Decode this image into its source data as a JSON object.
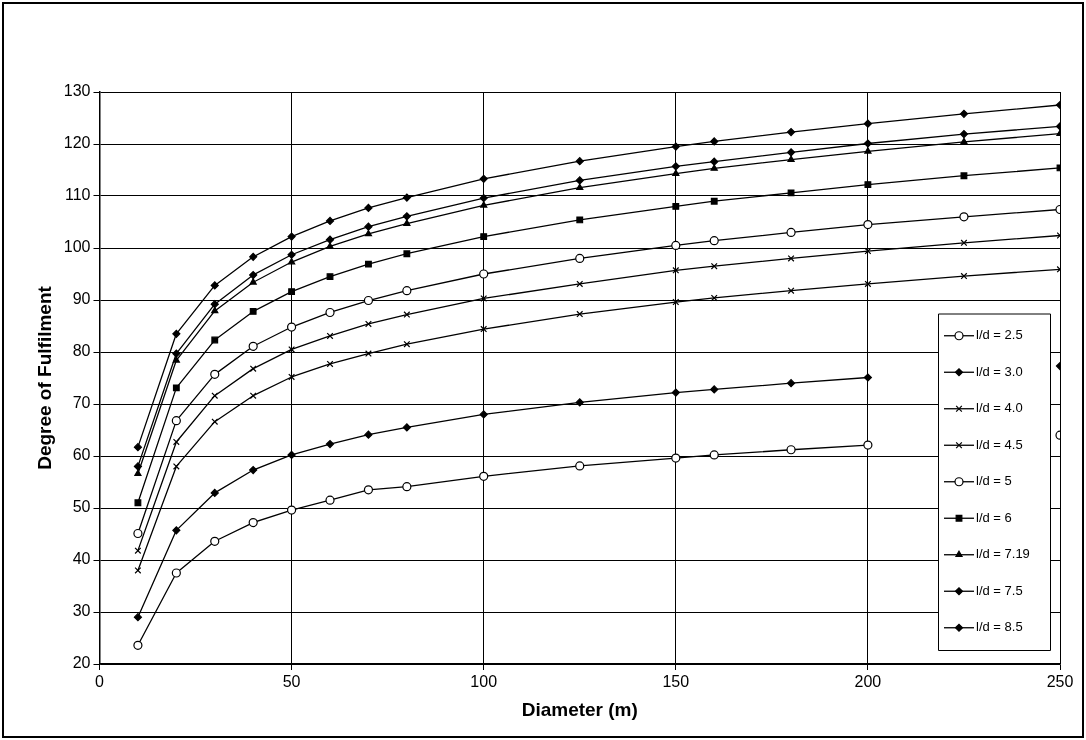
{
  "chart_data": {
    "type": "line",
    "xlabel": "Diameter (m)",
    "ylabel": "Degree of Fulfilment",
    "x": [
      10,
      20,
      30,
      40,
      50,
      60,
      70,
      80,
      100,
      125,
      150,
      160,
      180,
      200,
      225,
      250
    ],
    "xlim": [
      0,
      250
    ],
    "xticks": [
      0,
      50,
      100,
      150,
      200,
      250
    ],
    "ylim": [
      20,
      130
    ],
    "yticks": [
      20,
      30,
      40,
      50,
      60,
      70,
      80,
      90,
      100,
      110,
      120,
      130
    ],
    "grid": true,
    "legend": "bottom right",
    "line_style": "solid",
    "series": [
      {
        "name": "l/d = 2.5",
        "color": "#000000",
        "marker": "circle",
        "values": [
          23.6,
          37.5,
          43.6,
          47.2,
          49.6,
          51.5,
          53.5,
          54.1,
          56.1,
          58.1,
          59.6,
          60.2,
          61.2,
          62.1,
          null,
          64.0
        ]
      },
      {
        "name": "l/d = 3.0",
        "color": "#000000",
        "marker": "diamond",
        "values": [
          29,
          45.7,
          52.9,
          57.3,
          60.2,
          62.3,
          64.1,
          65.5,
          68,
          70.3,
          72.2,
          72.8,
          74,
          75.1,
          null,
          77.3
        ]
      },
      {
        "name": "l/d = 4.0",
        "color": "#000000",
        "marker": "cross",
        "values": [
          38,
          58,
          66.6,
          71.6,
          75.2,
          77.7,
          79.7,
          81.5,
          84.4,
          87.3,
          89.6,
          90.4,
          91.8,
          93.1,
          94.6,
          95.9
        ]
      },
      {
        "name": "l/d = 4.5",
        "color": "#000000",
        "marker": "cross",
        "values": [
          41.8,
          62.7,
          71.6,
          76.8,
          80.5,
          83.1,
          85.4,
          87.2,
          90.3,
          93.1,
          95.7,
          96.5,
          98,
          99.4,
          101,
          102.4
        ]
      },
      {
        "name": "l/d = 5",
        "color": "#000000",
        "marker": "circle",
        "values": [
          45.1,
          66.8,
          75.7,
          81.1,
          84.8,
          87.6,
          89.9,
          91.8,
          95,
          98,
          100.5,
          101.4,
          103,
          104.5,
          106,
          107.4
        ]
      },
      {
        "name": "l/d = 6",
        "color": "#000000",
        "marker": "square",
        "values": [
          51,
          73.1,
          82.3,
          87.8,
          91.6,
          94.5,
          96.9,
          98.9,
          102.2,
          105.4,
          108,
          109,
          110.6,
          112.2,
          113.9,
          115.4
        ]
      },
      {
        "name": "l/d = 7.19",
        "color": "#000000",
        "marker": "triangle",
        "values": [
          56.6,
          78.4,
          87.9,
          93.4,
          97.3,
          100.3,
          102.7,
          104.7,
          108.2,
          111.6,
          114.3,
          115.3,
          117,
          118.6,
          120.4,
          122
        ]
      },
      {
        "name": "l/d = 7.5",
        "color": "#000000",
        "marker": "diamond",
        "values": [
          58,
          79.7,
          89.2,
          94.8,
          98.7,
          101.6,
          104.1,
          106.1,
          109.6,
          113,
          115.7,
          116.6,
          118.4,
          120.1,
          121.9,
          123.4
        ]
      },
      {
        "name": "l/d = 8.5",
        "color": "#000000",
        "marker": "diamond",
        "values": [
          61.7,
          83.5,
          92.8,
          98.3,
          102.2,
          105.2,
          107.7,
          109.7,
          113.3,
          116.7,
          119.5,
          120.5,
          122.3,
          123.9,
          125.8,
          127.5
        ]
      }
    ]
  }
}
